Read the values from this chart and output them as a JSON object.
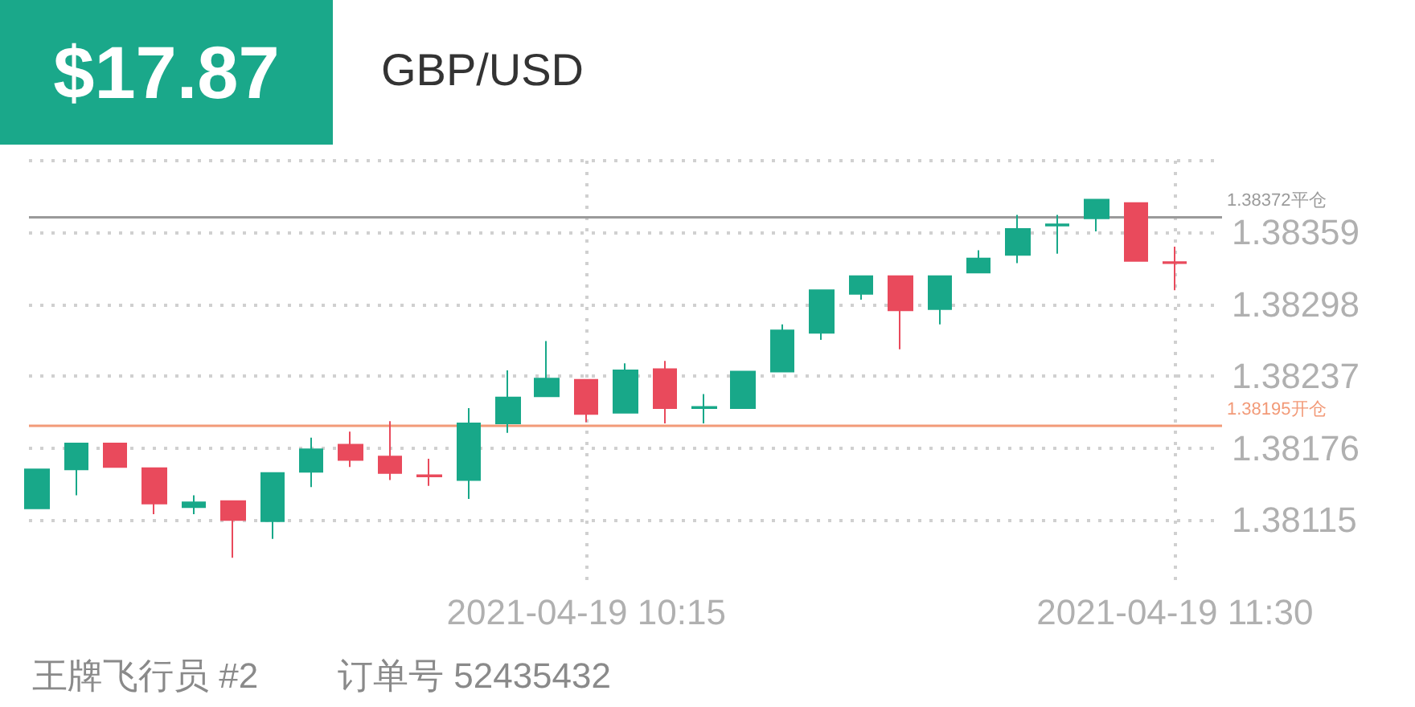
{
  "chart_data": {
    "type": "candlestick",
    "title": "GBP/USD",
    "annotations": [
      "$17.87",
      "王牌飞行员 #2",
      "订单号 52435432"
    ],
    "x": [
      "2021-04-19T09:05",
      "2021-04-19T09:10",
      "2021-04-19T09:15",
      "2021-04-19T09:20",
      "2021-04-19T09:25",
      "2021-04-19T09:30",
      "2021-04-19T09:35",
      "2021-04-19T09:40",
      "2021-04-19T09:45",
      "2021-04-19T09:50",
      "2021-04-19T09:55",
      "2021-04-19T10:00",
      "2021-04-19T10:05",
      "2021-04-19T10:10",
      "2021-04-19T10:15",
      "2021-04-19T10:20",
      "2021-04-19T10:25",
      "2021-04-19T10:30",
      "2021-04-19T10:35",
      "2021-04-19T10:40",
      "2021-04-19T10:45",
      "2021-04-19T10:50",
      "2021-04-19T10:55",
      "2021-04-19T11:00",
      "2021-04-19T11:05",
      "2021-04-19T11:10",
      "2021-04-19T11:15",
      "2021-04-19T11:20",
      "2021-04-19T11:25",
      "2021-04-19T11:30"
    ],
    "ohlc": [
      [
        1.38125,
        1.38158,
        1.38125,
        1.38158
      ],
      [
        1.38158,
        1.3818,
        1.38136,
        1.3818
      ],
      [
        1.3818,
        1.3818,
        1.3816,
        1.3816
      ],
      [
        1.38159,
        1.38159,
        1.3812,
        1.38129
      ],
      [
        1.38126,
        1.38136,
        1.3812,
        1.3813
      ],
      [
        1.38131,
        1.38131,
        1.38083,
        1.38115
      ],
      [
        1.38114,
        1.38155,
        1.38099,
        1.38155
      ],
      [
        1.38156,
        1.38185,
        1.38143,
        1.38175
      ],
      [
        1.38179,
        1.3819,
        1.3816,
        1.38166
      ],
      [
        1.38169,
        1.38199,
        1.38149,
        1.38155
      ],
      [
        1.38153,
        1.38167,
        1.38144,
        1.38152
      ],
      [
        1.38149,
        1.3821,
        1.38133,
        1.38197
      ],
      [
        1.38197,
        1.38242,
        1.38189,
        1.38219
      ],
      [
        1.3822,
        1.38267,
        1.3822,
        1.38235
      ],
      [
        1.38234,
        1.38234,
        1.38198,
        1.38205
      ],
      [
        1.38206,
        1.38248,
        1.38206,
        1.38242
      ],
      [
        1.38243,
        1.3825,
        1.38197,
        1.3821
      ],
      [
        1.3821,
        1.38222,
        1.38197,
        1.38211
      ],
      [
        1.3821,
        1.38241,
        1.3821,
        1.38241
      ],
      [
        1.38241,
        1.38281,
        1.38241,
        1.38276
      ],
      [
        1.38274,
        1.3831,
        1.38268,
        1.3831
      ],
      [
        1.38307,
        1.38322,
        1.38302,
        1.38322
      ],
      [
        1.38322,
        1.38322,
        1.3826,
        1.38293
      ],
      [
        1.38294,
        1.38322,
        1.38281,
        1.38322
      ],
      [
        1.38325,
        1.38344,
        1.38325,
        1.38337
      ],
      [
        1.3834,
        1.38374,
        1.38333,
        1.38362
      ],
      [
        1.38365,
        1.38374,
        1.38341,
        1.38366
      ],
      [
        1.38371,
        1.38387,
        1.3836,
        1.38387
      ],
      [
        1.38384,
        1.38384,
        1.38335,
        1.38335
      ],
      [
        1.38334,
        1.38347,
        1.3831,
        1.38333
      ]
    ],
    "colors": [
      "#18a889",
      "#18a889",
      "#e94a5c",
      "#e94a5c",
      "#18a889",
      "#e94a5c",
      "#18a889",
      "#18a889",
      "#e94a5c",
      "#e94a5c",
      "#e94a5c",
      "#18a889",
      "#18a889",
      "#18a889",
      "#e94a5c",
      "#18a889",
      "#e94a5c",
      "#18a889",
      "#18a889",
      "#18a889",
      "#18a889",
      "#18a889",
      "#e94a5c",
      "#18a889",
      "#18a889",
      "#18a889",
      "#18a889",
      "#18a889",
      "#e94a5c",
      "#e94a5c"
    ],
    "xlim": [
      "2021-04-19T09:04",
      "2021-04-19T11:36"
    ],
    "xticks": [
      {
        "value": "2021-04-19T10:15",
        "label": "2021-04-19 10:15"
      },
      {
        "value": "2021-04-19T11:30",
        "label": "2021-04-19 11:30"
      }
    ],
    "ylim": [
      1.3806,
      1.3842
    ],
    "yticks": [
      1.38115,
      1.38176,
      1.38237,
      1.38298,
      1.38359,
      {
        "value": 1.3842,
        "label": null
      }
    ],
    "grid": true,
    "ref_lines": [
      {
        "axis": "y",
        "value": 1.38372,
        "label": "1.38372平仓",
        "color": "#9a9a9a"
      },
      {
        "axis": "y",
        "value": 1.38195,
        "label": "1.38195开仓",
        "color": "#f29a78"
      }
    ]
  }
}
